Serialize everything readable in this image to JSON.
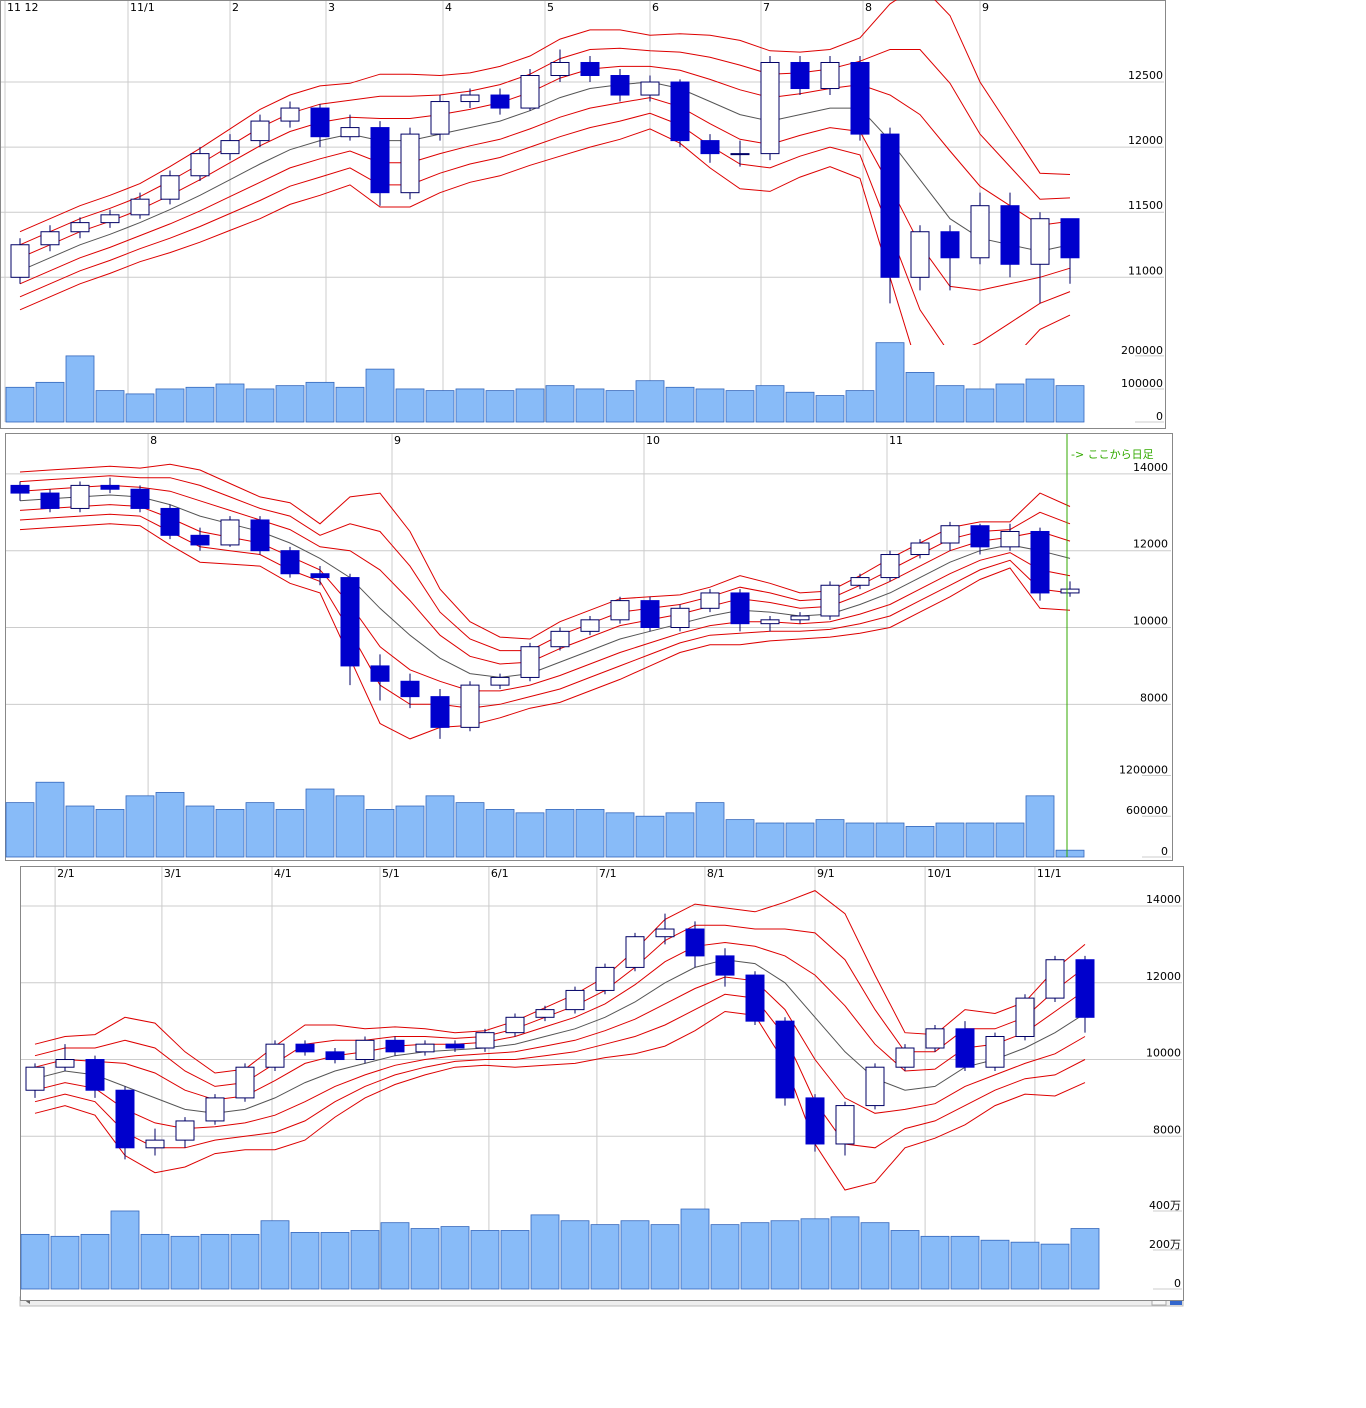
{
  "chart_data": [
    {
      "type": "candlestick",
      "xlim": [
        0,
        36
      ],
      "xticks": [
        {
          "value": 0,
          "label": "11 12"
        },
        {
          "value": 4.1,
          "label": "11/1"
        },
        {
          "value": 7.5,
          "label": "2"
        },
        {
          "value": 10.7,
          "label": "3"
        },
        {
          "value": 14.6,
          "label": "4"
        },
        {
          "value": 18,
          "label": "5"
        },
        {
          "value": 21.5,
          "label": "6"
        },
        {
          "value": 25.2,
          "label": "7"
        },
        {
          "value": 28.6,
          "label": "8"
        },
        {
          "value": 32.5,
          "label": "9"
        }
      ],
      "ylim": [
        10480,
        13130
      ],
      "yticks": [
        11000,
        11500,
        12000,
        12500
      ],
      "vlim": [
        0,
        233000
      ],
      "vticks": [
        0,
        100000,
        200000
      ],
      "open": [
        11000,
        11250,
        11350,
        11420,
        11480,
        11600,
        11780,
        11950,
        12050,
        12200,
        12300,
        12080,
        12150,
        11650,
        12100,
        12350,
        12400,
        12300,
        12550,
        12650,
        12550,
        12400,
        12500,
        12050,
        11950,
        11950,
        12650,
        12450,
        12650,
        12100,
        11000,
        11350,
        11150,
        11550,
        11100,
        11450
      ],
      "high": [
        11300,
        11400,
        11460,
        11520,
        11650,
        11820,
        12000,
        12100,
        12250,
        12350,
        12330,
        12250,
        12200,
        12150,
        12400,
        12450,
        12450,
        12600,
        12750,
        12700,
        12600,
        12550,
        12520,
        12100,
        12050,
        12700,
        12700,
        12700,
        12700,
        12150,
        11400,
        11400,
        11650,
        11650,
        11500,
        11450
      ],
      "low": [
        10950,
        11200,
        11300,
        11380,
        11450,
        11560,
        11740,
        11900,
        12000,
        12150,
        12000,
        12050,
        11550,
        11600,
        12050,
        12300,
        12250,
        12280,
        12500,
        12500,
        12350,
        12350,
        12000,
        11880,
        11850,
        11900,
        12400,
        12400,
        12050,
        10800,
        10900,
        10900,
        11100,
        11000,
        10800,
        10950
      ],
      "close": [
        11250,
        11350,
        11420,
        11480,
        11600,
        11780,
        11950,
        12050,
        12200,
        12300,
        12080,
        12150,
        11650,
        12100,
        12350,
        12400,
        12300,
        12550,
        12650,
        12550,
        12400,
        12500,
        12050,
        11950,
        11950,
        12650,
        12450,
        12650,
        12100,
        11000,
        11350,
        11150,
        11550,
        11100,
        11450,
        11150
      ],
      "volume": [
        105000,
        120000,
        200000,
        95000,
        85000,
        100000,
        105000,
        115000,
        100000,
        110000,
        120000,
        105000,
        160000,
        100000,
        95000,
        100000,
        95000,
        100000,
        110000,
        100000,
        95000,
        125000,
        105000,
        100000,
        95000,
        110000,
        90000,
        80000,
        95000,
        240000,
        150000,
        110000,
        100000,
        115000,
        130000,
        110000
      ],
      "ma": [
        11050,
        11150,
        11250,
        11330,
        11420,
        11520,
        11630,
        11750,
        11870,
        11980,
        12050,
        12100,
        12050,
        12050,
        12100,
        12150,
        12200,
        12280,
        12380,
        12450,
        12480,
        12500,
        12450,
        12350,
        12250,
        12200,
        12250,
        12300,
        12300,
        12050,
        11750,
        11450,
        11300,
        11250,
        11200,
        11250
      ],
      "sd": [
        100,
        100,
        100,
        100,
        100,
        110,
        120,
        130,
        140,
        140,
        140,
        130,
        170,
        170,
        150,
        140,
        140,
        140,
        150,
        150,
        140,
        120,
        140,
        170,
        190,
        180,
        160,
        150,
        180,
        350,
        500,
        520,
        400,
        300,
        200,
        180
      ],
      "band_sigmas": [
        1,
        2,
        3
      ],
      "up_color": "#ffffff",
      "down_color": "#0000cc",
      "band_color": "#dd0000",
      "ma_color": "#555555",
      "volume_color": "#88bbf8",
      "grid": true
    },
    {
      "type": "candlestick",
      "xlim": [
        0,
        36
      ],
      "xticks": [
        {
          "value": 4.77,
          "label": "8"
        },
        {
          "value": 12.9,
          "label": "9"
        },
        {
          "value": 21.3,
          "label": "10"
        },
        {
          "value": 29.4,
          "label": "11"
        }
      ],
      "ylim": [
        6290,
        14960
      ],
      "yticks": [
        8000,
        10000,
        12000,
        14000
      ],
      "vlim": [
        0,
        1280000
      ],
      "vticks": [
        0,
        600000,
        1200000
      ],
      "open": [
        13700,
        13500,
        13100,
        13700,
        13600,
        13100,
        12400,
        12150,
        12800,
        12000,
        11400,
        11300,
        9000,
        8600,
        8200,
        7400,
        8500,
        8700,
        9500,
        9900,
        10200,
        10700,
        10000,
        10500,
        10900,
        10100,
        10200,
        10300,
        11100,
        11300,
        11900,
        12200,
        12650,
        12100,
        12500,
        10900
      ],
      "high": [
        13800,
        13600,
        13800,
        13900,
        13700,
        13200,
        12600,
        12900,
        12900,
        12100,
        11600,
        11400,
        9300,
        8800,
        8400,
        8600,
        8800,
        9600,
        10000,
        10300,
        10800,
        10800,
        10600,
        11000,
        11000,
        10300,
        10400,
        11200,
        11400,
        12000,
        12300,
        12750,
        12700,
        12700,
        12600,
        11200
      ],
      "low": [
        13300,
        13000,
        13000,
        13500,
        13000,
        12300,
        12000,
        12100,
        11900,
        11300,
        11100,
        8500,
        8100,
        7900,
        7100,
        7300,
        8400,
        8600,
        9400,
        9800,
        10100,
        9900,
        9900,
        10400,
        9900,
        9900,
        10100,
        10200,
        11000,
        11200,
        11800,
        12000,
        11900,
        12000,
        10700,
        10800
      ],
      "close": [
        13500,
        13100,
        13700,
        13600,
        13100,
        12400,
        12150,
        12800,
        12000,
        11400,
        11300,
        9000,
        8600,
        8200,
        7400,
        8500,
        8700,
        9500,
        9900,
        10200,
        10700,
        10000,
        10500,
        10900,
        10100,
        10200,
        10300,
        11100,
        11300,
        11900,
        12200,
        12650,
        12100,
        12500,
        10900,
        11000
      ],
      "volume": [
        800000,
        1100000,
        750000,
        700000,
        900000,
        950000,
        750000,
        700000,
        800000,
        700000,
        1000000,
        900000,
        700000,
        750000,
        900000,
        800000,
        700000,
        650000,
        700000,
        700000,
        650000,
        600000,
        650000,
        800000,
        550000,
        500000,
        500000,
        550000,
        500000,
        500000,
        450000,
        500000,
        500000,
        500000,
        900000,
        100000
      ],
      "ma": [
        13300,
        13350,
        13400,
        13450,
        13400,
        13200,
        12900,
        12700,
        12500,
        12200,
        11800,
        11300,
        10500,
        9800,
        9200,
        8800,
        8700,
        8800,
        9100,
        9400,
        9700,
        9900,
        10100,
        10300,
        10450,
        10400,
        10300,
        10350,
        10600,
        10900,
        11300,
        11700,
        12000,
        12150,
        12000,
        11800
      ],
      "sd": [
        250,
        250,
        250,
        250,
        250,
        350,
        400,
        350,
        300,
        350,
        300,
        700,
        1000,
        900,
        600,
        450,
        350,
        300,
        350,
        350,
        350,
        300,
        250,
        250,
        300,
        250,
        200,
        200,
        250,
        300,
        300,
        300,
        250,
        200,
        500,
        450
      ],
      "band_sigmas": [
        1,
        2,
        3
      ],
      "annotation": {
        "text": "-> ここから日足",
        "x": 35.4,
        "color": "#33aa00"
      },
      "up_color": "#ffffff",
      "down_color": "#0000cc",
      "band_color": "#dd0000",
      "ma_color": "#555555",
      "volume_color": "#88bbf8",
      "grid": true
    },
    {
      "type": "candlestick",
      "xlim": [
        0,
        36
      ],
      "xticks": [
        {
          "value": 1.17,
          "label": "2/1"
        },
        {
          "value": 4.73,
          "label": "3/1"
        },
        {
          "value": 8.4,
          "label": "4/1"
        },
        {
          "value": 12,
          "label": "5/1"
        },
        {
          "value": 15.63,
          "label": "6/1"
        },
        {
          "value": 19.23,
          "label": "7/1"
        },
        {
          "value": 22.83,
          "label": "8/1"
        },
        {
          "value": 26.5,
          "label": "9/1"
        },
        {
          "value": 30.17,
          "label": "10/1"
        },
        {
          "value": 33.83,
          "label": "11/1"
        }
      ],
      "ylim": [
        6340,
        14990
      ],
      "yticks": [
        8000,
        10000,
        12000,
        14000
      ],
      "vlim": [
        0,
        4050000
      ],
      "vticks": [
        0,
        {
          "value": 2000000,
          "label": "200万"
        },
        {
          "value": 4000000,
          "label": "400万"
        }
      ],
      "open": [
        9200,
        9800,
        10000,
        9200,
        7700,
        7900,
        8400,
        9000,
        9800,
        10400,
        10200,
        10000,
        10500,
        10200,
        10400,
        10300,
        10700,
        11100,
        11300,
        11800,
        12400,
        13200,
        13400,
        12700,
        12200,
        11000,
        9000,
        7800,
        8800,
        9800,
        10300,
        10800,
        9800,
        10600,
        11600,
        12600
      ],
      "high": [
        9900,
        10400,
        10100,
        9300,
        8200,
        8500,
        9100,
        9900,
        10500,
        10500,
        10300,
        10600,
        10600,
        10500,
        10500,
        10800,
        11200,
        11400,
        11900,
        12500,
        13300,
        13800,
        13600,
        12900,
        12300,
        11100,
        9100,
        8900,
        9900,
        10400,
        10900,
        11000,
        10700,
        11700,
        12700,
        12700
      ],
      "low": [
        9000,
        9700,
        9000,
        7400,
        7500,
        7700,
        8300,
        8900,
        9700,
        10100,
        9900,
        9900,
        10100,
        10100,
        10200,
        10200,
        10600,
        11000,
        11200,
        11700,
        12300,
        13000,
        12400,
        11900,
        10900,
        8800,
        7600,
        7500,
        8700,
        9700,
        10200,
        9700,
        9700,
        10500,
        11500,
        10700
      ],
      "close": [
        9800,
        10000,
        9200,
        7700,
        7900,
        8400,
        9000,
        9800,
        10400,
        10200,
        10000,
        10500,
        10200,
        10400,
        10300,
        10700,
        11100,
        11300,
        11800,
        12400,
        13200,
        13400,
        12700,
        12200,
        11000,
        9000,
        7800,
        8800,
        9800,
        10300,
        10800,
        9800,
        10600,
        11600,
        12600,
        11100
      ],
      "volume": [
        2800000,
        2700000,
        2800000,
        4000000,
        2800000,
        2700000,
        2800000,
        2800000,
        3500000,
        2900000,
        2900000,
        3000000,
        3400000,
        3100000,
        3200000,
        3000000,
        3000000,
        3800000,
        3500000,
        3300000,
        3500000,
        3300000,
        4100000,
        3300000,
        3400000,
        3500000,
        3600000,
        3700000,
        3400000,
        3000000,
        2700000,
        2700000,
        2500000,
        2400000,
        2300000,
        3100000
      ],
      "ma": [
        9500,
        9700,
        9600,
        9300,
        9000,
        8700,
        8600,
        8700,
        9000,
        9400,
        9700,
        9900,
        10100,
        10200,
        10250,
        10300,
        10400,
        10600,
        10800,
        11100,
        11500,
        12000,
        12400,
        12600,
        12500,
        12000,
        11100,
        10200,
        9500,
        9200,
        9300,
        9800,
        10000,
        10300,
        10700,
        11200
      ],
      "sd": [
        300,
        300,
        350,
        600,
        650,
        500,
        350,
        350,
        450,
        500,
        400,
        300,
        250,
        200,
        150,
        150,
        200,
        250,
        300,
        350,
        450,
        550,
        550,
        450,
        450,
        700,
        1100,
        1200,
        900,
        500,
        450,
        500,
        400,
        400,
        550,
        600
      ],
      "band_sigmas": [
        1,
        2,
        3
      ],
      "up_color": "#ffffff",
      "down_color": "#0000cc",
      "band_color": "#dd0000",
      "ma_color": "#555555",
      "volume_color": "#88bbf8",
      "grid": true
    }
  ]
}
